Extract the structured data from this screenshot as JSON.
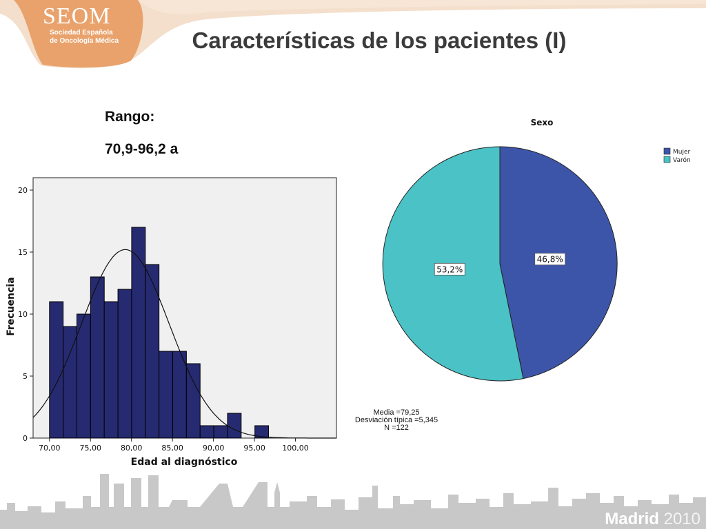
{
  "logo": {
    "title": "SEOM",
    "subtitle_line1": "Sociedad Española",
    "subtitle_line2": "de Oncología Médica"
  },
  "slide": {
    "title": "Características de los pacientes (I)",
    "range_label": "Rango:",
    "range_value": "70,9-96,2 a"
  },
  "chart_data": [
    {
      "type": "bar",
      "subtype": "histogram",
      "xlabel": "Edad al diagnóstico",
      "ylabel": "Frecuencia",
      "xlim": [
        68,
        105
      ],
      "ylim": [
        0,
        21
      ],
      "x_ticks": [
        70,
        75,
        80,
        85,
        90,
        95,
        100
      ],
      "x_tick_labels": [
        "70,00",
        "75,00",
        "80,00",
        "85,00",
        "90,00",
        "95,00",
        "100,00"
      ],
      "y_ticks": [
        0,
        5,
        10,
        15,
        20
      ],
      "y_tick_labels": [
        "0",
        "5",
        "10",
        "15",
        "20"
      ],
      "bin_width": 1.67,
      "bin_start": 70,
      "counts": [
        11,
        9,
        10,
        13,
        11,
        12,
        17,
        14,
        7,
        7,
        6,
        1,
        1,
        2,
        0,
        1
      ],
      "normal_curve": {
        "mean": 79.25,
        "sd": 5.345,
        "n": 122
      },
      "stats_lines": [
        "Media =79,25",
        "Desviación típica =5,345",
        "N =122"
      ],
      "colors": {
        "bar": "#262a70",
        "background": "#f0f0f0"
      },
      "grid": false
    },
    {
      "type": "pie",
      "title": "Sexo",
      "labels": [
        "Mujer",
        "Varón"
      ],
      "values": [
        46.8,
        53.2
      ],
      "value_labels": [
        "46,8%",
        "53,2%"
      ],
      "colors": [
        "#3d55a8",
        "#4bc2c6"
      ],
      "legend": "top-right"
    }
  ],
  "footer": {
    "city": "Madrid",
    "year": "2010"
  }
}
